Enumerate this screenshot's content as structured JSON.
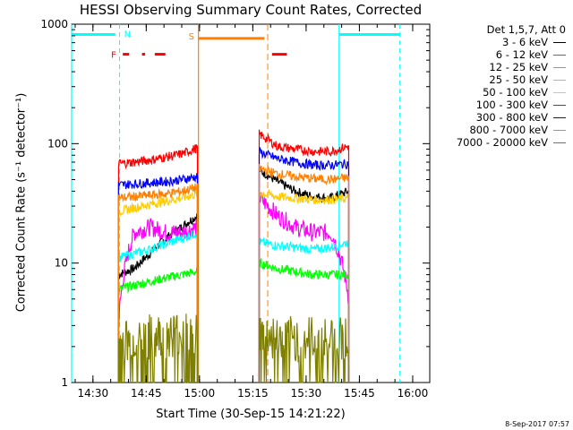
{
  "chart_data": {
    "type": "line",
    "title": "HESSI Observing Summary Count Rates, Corrected",
    "xlabel": "Start Time (30-Sep-15 14:21:22)",
    "ylabel": "Corrected Count Rate (s⁻¹ detector⁻¹)",
    "yscale": "log",
    "ylim": [
      1,
      1000
    ],
    "xlim_minutes": [
      14.4,
      16.08
    ],
    "yticks": [
      "1",
      "10",
      "100",
      "1000"
    ],
    "xticks": [
      "14:30",
      "14:45",
      "15:00",
      "15:15",
      "15:30",
      "15:45",
      "16:00"
    ],
    "legend_title": "Det 1,5,7, Att 0",
    "series": [
      {
        "name": "3 - 6 keV",
        "color": "#000000",
        "seg1": [
          8,
          9,
          12,
          16,
          20,
          25
        ],
        "seg2": [
          60,
          48,
          40,
          36,
          35,
          40
        ]
      },
      {
        "name": "6 - 12 keV",
        "color": "#ff00ff",
        "seg1": [
          3,
          18,
          20,
          18,
          18,
          20
        ],
        "seg2": [
          35,
          25,
          20,
          18,
          18,
          5
        ]
      },
      {
        "name": "12 - 25 keV",
        "color": "#00ff00",
        "seg1": [
          6,
          6.5,
          7,
          7.5,
          8,
          8.5
        ],
        "seg2": [
          10,
          9,
          8.5,
          8,
          8,
          8
        ]
      },
      {
        "name": "25 - 50 keV",
        "color": "#00ffff",
        "seg1": [
          11,
          12,
          13,
          14.5,
          16,
          18
        ],
        "seg2": [
          15,
          14,
          13.5,
          13,
          13.5,
          15
        ]
      },
      {
        "name": "50 - 100 keV",
        "color": "#ffcc00",
        "seg1": [
          27,
          29,
          31,
          33,
          35,
          38
        ],
        "seg2": [
          39,
          36,
          35,
          34,
          34,
          35
        ]
      },
      {
        "name": "100 - 300 keV",
        "color": "#ff0000",
        "seg1": [
          68,
          70,
          73,
          77,
          82,
          92
        ],
        "seg2": [
          120,
          95,
          90,
          86,
          86,
          95
        ]
      },
      {
        "name": "300 - 800 keV",
        "color": "#0000ff",
        "seg1": [
          45,
          46,
          47,
          48,
          50,
          53
        ],
        "seg2": [
          85,
          75,
          70,
          66,
          66,
          68
        ]
      },
      {
        "name": "800 - 7000 keV",
        "color": "#ff8000",
        "seg1": [
          35,
          36,
          37,
          38,
          40,
          43
        ],
        "seg2": [
          62,
          56,
          53,
          51,
          50,
          52
        ]
      },
      {
        "name": "7000 - 20000 keV",
        "color": "#808000",
        "seg1": [
          2.2,
          2.3,
          2.4,
          2.5,
          2.6,
          2.7
        ],
        "seg2": [
          2.5,
          2.4,
          2.3,
          2.3,
          2.3,
          2.4
        ]
      }
    ],
    "segments_time": [
      [
        14.62,
        14.99
      ],
      [
        15.28,
        15.7
      ]
    ],
    "annotations": {
      "night_label": "N",
      "saa_label": "S",
      "flare_label": "F"
    },
    "colors": {
      "cyan": "#00ffff",
      "orange": "#ff8000",
      "red": "#ff0000",
      "axis": "#000000"
    }
  },
  "footer": "8-Sep-2017 07:57"
}
